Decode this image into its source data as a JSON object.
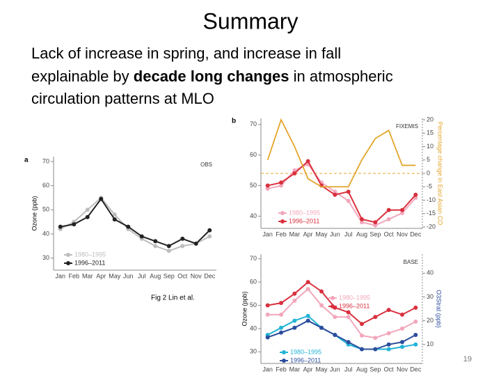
{
  "header": {
    "title": "Summary"
  },
  "body": {
    "line1": "Lack of increase in spring, and increase in fall",
    "line2a": "explainable by ",
    "line2b": "decade long changes",
    "line2c": " in atmospheric",
    "line3": "circulation patterns at MLO"
  },
  "caption": "Fig 2 Lin et al.",
  "page_number": "19",
  "chart_data": [
    {
      "type": "line",
      "panel": "a",
      "title": "OBS",
      "ylabel": "Ozone (ppb)",
      "categories": [
        "Jan",
        "Feb",
        "Mar",
        "Apr",
        "May",
        "Jun",
        "Jul",
        "Aug",
        "Sep",
        "Oct",
        "Nov",
        "Dec"
      ],
      "ylim": [
        25,
        72
      ],
      "yticks": [
        30,
        40,
        50,
        60,
        70
      ],
      "series": [
        {
          "name": "1980–1995",
          "color": "#bdbdbd",
          "values": [
            42,
            45,
            50,
            55,
            48,
            42,
            38,
            35,
            33,
            35,
            36,
            39
          ]
        },
        {
          "name": "1996–2011",
          "color": "#222222",
          "values": [
            43,
            44,
            47,
            54.5,
            46,
            43,
            39,
            37,
            35,
            38,
            36,
            41.5
          ]
        }
      ]
    },
    {
      "type": "line",
      "panel": "b",
      "title": "FIXEMIS",
      "y2label": "Percentage change in East Asian CO",
      "categories": [
        "Jan",
        "Feb",
        "Mar",
        "Apr",
        "May",
        "Jun",
        "Jul",
        "Aug",
        "Sep",
        "Oct",
        "Nov",
        "Dec"
      ],
      "ylim": [
        36,
        72
      ],
      "yticks": [
        40,
        50,
        60,
        70
      ],
      "y2lim": [
        -20.5,
        20.5
      ],
      "y2ticks": [
        -20,
        -15,
        -10,
        -5,
        0,
        5,
        10,
        15,
        20
      ],
      "y2_refline": 0,
      "series": [
        {
          "name": "1980–1995",
          "color": "#f2a7bb",
          "values": [
            49,
            50,
            55,
            57,
            51,
            48,
            45,
            38,
            37,
            39,
            41,
            46
          ]
        },
        {
          "name": "1996–2011",
          "color": "#d9303e",
          "values": [
            50,
            51,
            54,
            58,
            50,
            47,
            48,
            39,
            38,
            42,
            42,
            47
          ]
        },
        {
          "color": "#e3a52a",
          "axis": "y2",
          "values": [
            5,
            20,
            10,
            -2,
            -5,
            -5,
            -5,
            5,
            13,
            16,
            3,
            3
          ]
        }
      ]
    },
    {
      "type": "line",
      "title": "BASE",
      "ylabel": "Ozone (ppb)",
      "y2label": "O3Strat (ppb)",
      "categories": [
        "Jan",
        "Feb",
        "Mar",
        "Apr",
        "May",
        "Jun",
        "Jul",
        "Aug",
        "Sep",
        "Oct",
        "Nov",
        "Dec"
      ],
      "ylim": [
        25,
        72
      ],
      "yticks": [
        30,
        40,
        50,
        60,
        70
      ],
      "y2lim": [
        2,
        48
      ],
      "y2ticks": [
        10,
        20,
        30,
        40
      ],
      "series": [
        {
          "name": "1980–1995",
          "color": "#f2a7bb",
          "values": [
            46,
            46,
            52,
            57,
            50,
            45,
            45,
            37,
            36,
            38,
            40,
            43
          ]
        },
        {
          "name": "1996–2011",
          "color": "#d9303e",
          "values": [
            50,
            51,
            55,
            60,
            56,
            49,
            47,
            42,
            45,
            48,
            46,
            49
          ]
        },
        {
          "name": "1980–1995",
          "color": "#22b3d6",
          "axis": "y2",
          "values": [
            14,
            17,
            20,
            22,
            17,
            14,
            10,
            8,
            8,
            8,
            9,
            10
          ]
        },
        {
          "name": "1996–2011",
          "color": "#2c4d9c",
          "axis": "y2",
          "values": [
            13,
            15,
            17,
            20,
            17,
            14,
            11,
            8,
            8,
            10,
            11,
            14
          ]
        }
      ]
    }
  ]
}
